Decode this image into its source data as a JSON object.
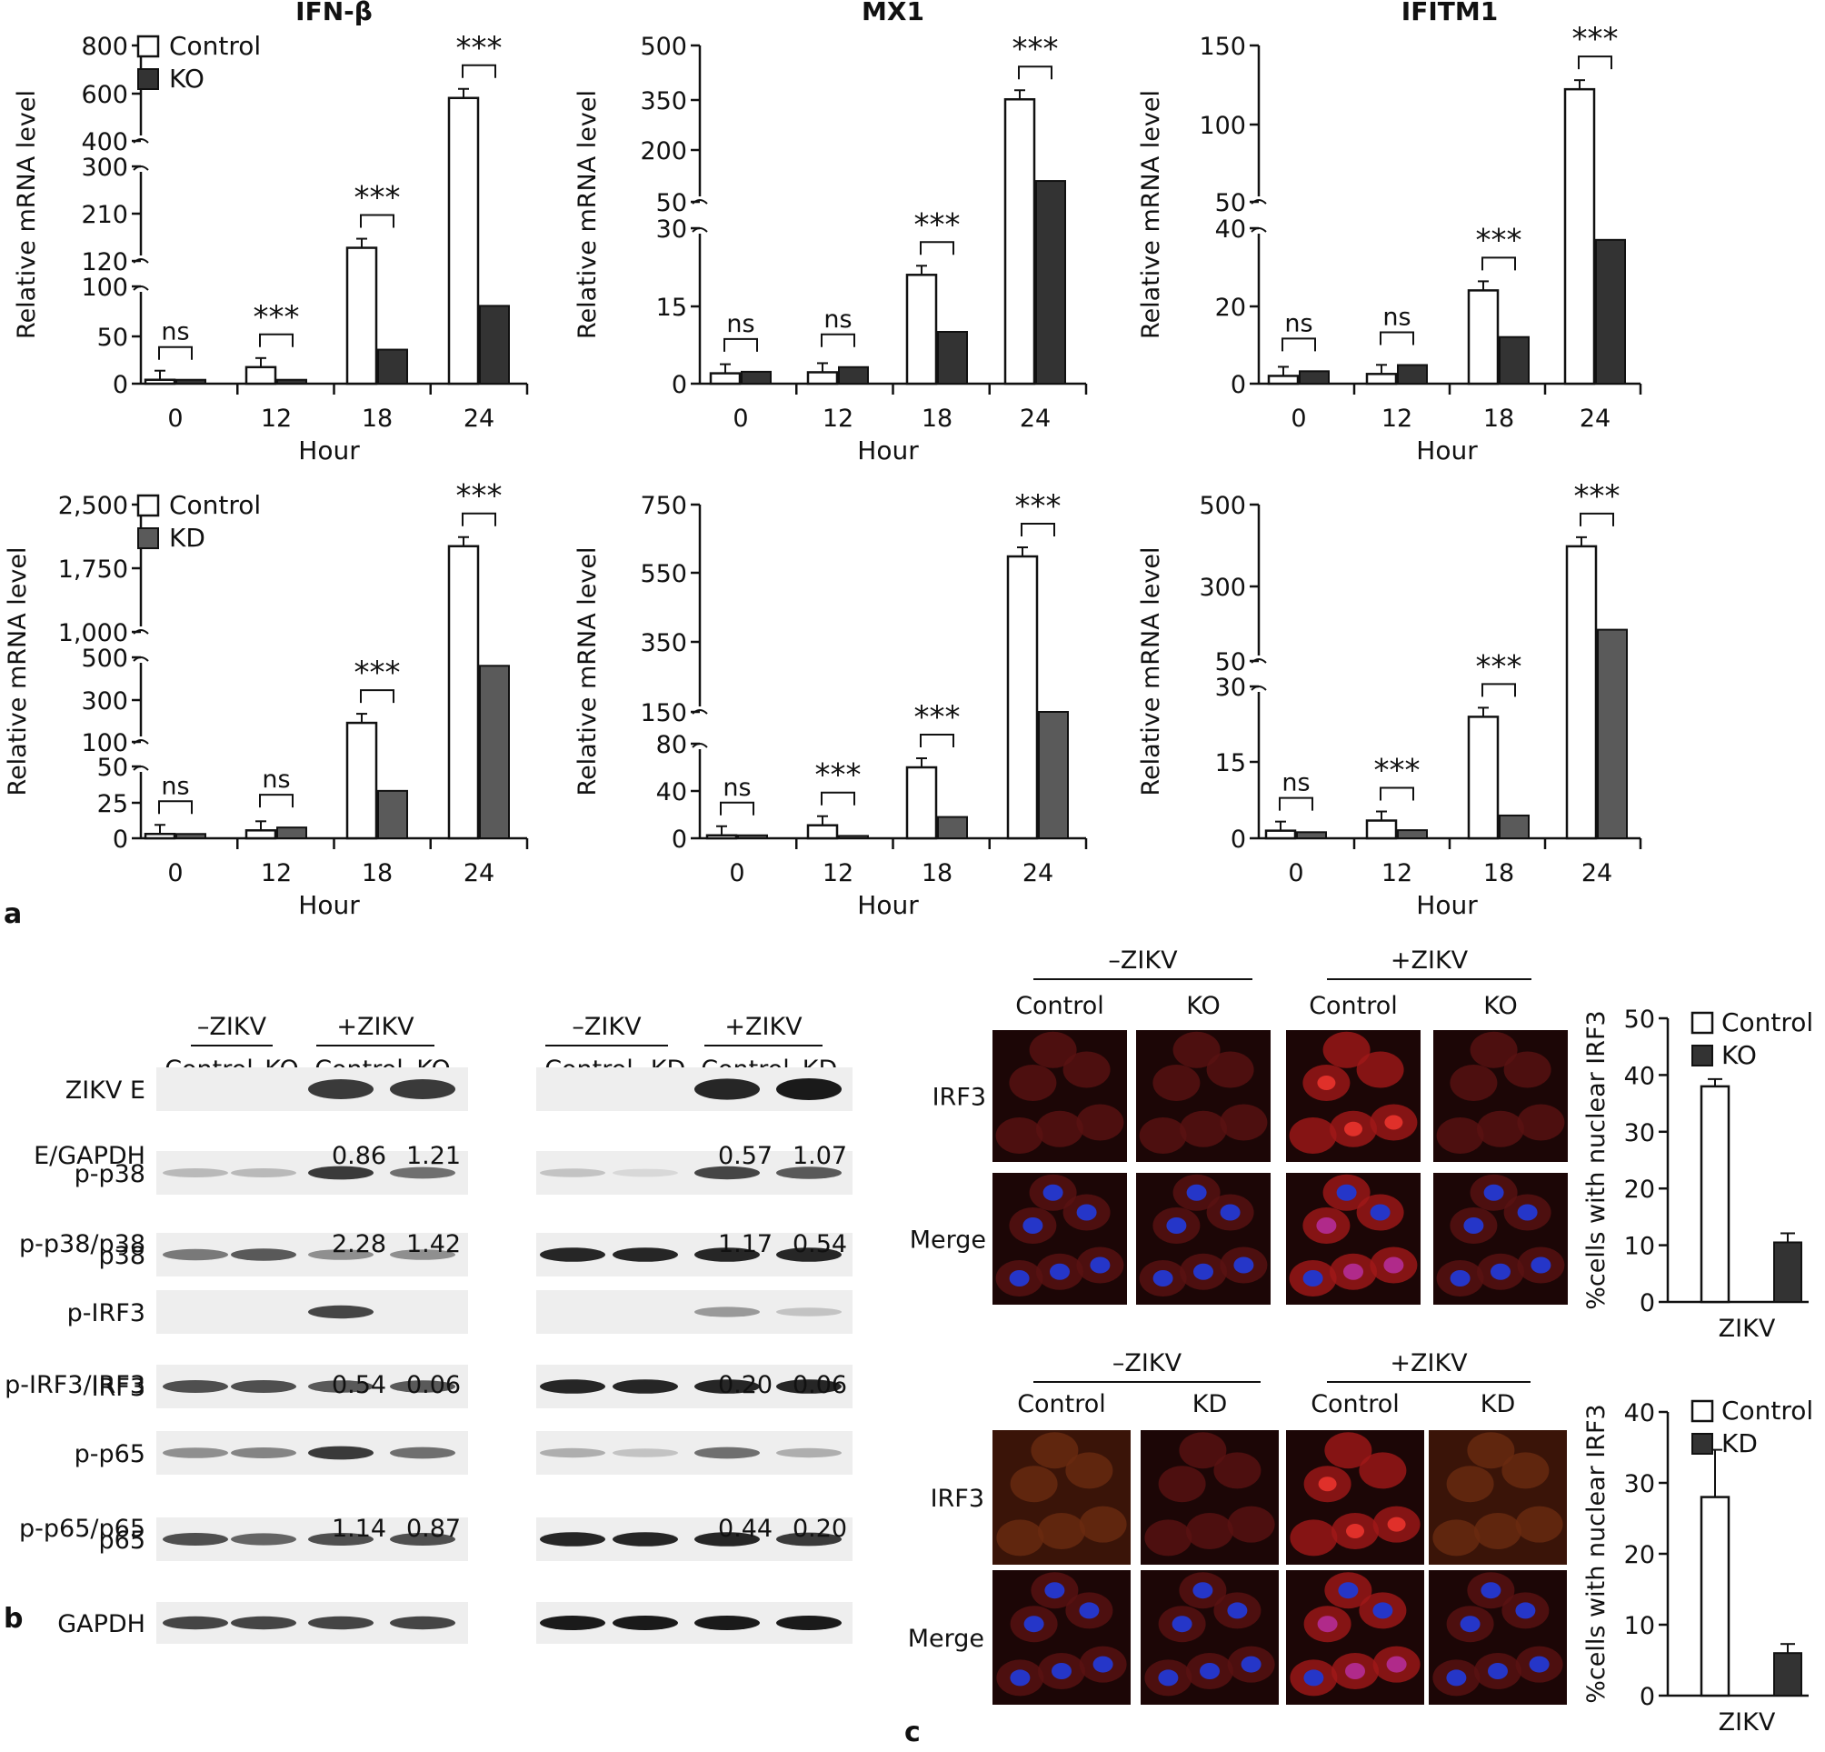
{
  "panel_labels": {
    "a": "a",
    "b": "b",
    "c": "c"
  },
  "colors": {
    "control": "#ffffff",
    "ko": "#333333",
    "kd": "#5a5a5a"
  },
  "chart_data": [
    {
      "type": "bar",
      "title": "IFN-β",
      "xlabel": "Hour",
      "ylabel": "Relative mRNA level",
      "categories": [
        "0",
        "12",
        "18",
        "24"
      ],
      "legend": [
        "Control",
        "KO"
      ],
      "broken_axis": true,
      "ticks": [
        "800",
        "600",
        "400",
        "300",
        "210",
        "120",
        "100",
        "50",
        "0"
      ],
      "series": [
        {
          "name": "Control",
          "values": [
            4,
            17,
            145,
            580
          ]
        },
        {
          "name": "KO",
          "values": [
            4,
            4,
            35,
            80
          ]
        }
      ],
      "significance": [
        "ns",
        "***",
        "***",
        "***"
      ]
    },
    {
      "type": "bar",
      "title": "MX1",
      "xlabel": "Hour",
      "ylabel": "Relative mRNA level",
      "categories": [
        "0",
        "12",
        "18",
        "24"
      ],
      "broken_axis": true,
      "ticks": [
        "500",
        "350",
        "200",
        "50",
        "30",
        "15",
        "0"
      ],
      "series": [
        {
          "name": "Control",
          "values": [
            2,
            2.2,
            21,
            345
          ]
        },
        {
          "name": "KO",
          "values": [
            2.3,
            3.2,
            10,
            110
          ]
        }
      ],
      "significance": [
        "ns",
        "ns",
        "***",
        "***"
      ]
    },
    {
      "type": "bar",
      "title": "IFITM1",
      "xlabel": "Hour",
      "ylabel": "Relative mRNA level",
      "categories": [
        "0",
        "12",
        "18",
        "24"
      ],
      "broken_axis": true,
      "ticks": [
        "150",
        "100",
        "50",
        "40",
        "20",
        "0"
      ],
      "series": [
        {
          "name": "Control",
          "values": [
            2,
            2.5,
            24,
            122
          ]
        },
        {
          "name": "KO",
          "values": [
            3.2,
            4.8,
            12,
            37
          ]
        }
      ],
      "significance": [
        "ns",
        "ns",
        "***",
        "***"
      ]
    },
    {
      "type": "bar",
      "title": "",
      "xlabel": "Hour",
      "ylabel": "Relative mRNA level",
      "categories": [
        "0",
        "12",
        "18",
        "24"
      ],
      "legend": [
        "Control",
        "KD"
      ],
      "broken_axis": true,
      "ticks": [
        "2,500",
        "1,750",
        "1,000",
        "500",
        "300",
        "100",
        "50",
        "25",
        "0"
      ],
      "series": [
        {
          "name": "Control",
          "values": [
            3,
            5.5,
            190,
            2010
          ]
        },
        {
          "name": "KD",
          "values": [
            3,
            7.5,
            33,
            460
          ]
        }
      ],
      "significance": [
        "ns",
        "ns",
        "***",
        "***"
      ]
    },
    {
      "type": "bar",
      "title": "",
      "xlabel": "Hour",
      "ylabel": "Relative mRNA level",
      "categories": [
        "0",
        "12",
        "18",
        "24"
      ],
      "broken_axis": true,
      "ticks": [
        "750",
        "550",
        "350",
        "150",
        "80",
        "40",
        "0"
      ],
      "series": [
        {
          "name": "Control",
          "values": [
            2.5,
            11,
            60,
            600
          ]
        },
        {
          "name": "KD",
          "values": [
            2.5,
            2,
            18,
            150
          ]
        }
      ],
      "significance": [
        "ns",
        "***",
        "***",
        "***"
      ]
    },
    {
      "type": "bar",
      "title": "",
      "xlabel": "Hour",
      "ylabel": "Relative mRNA level",
      "categories": [
        "0",
        "12",
        "18",
        "24"
      ],
      "broken_axis": true,
      "ticks": [
        "500",
        "300",
        "50",
        "30",
        "15",
        "0"
      ],
      "series": [
        {
          "name": "Control",
          "values": [
            1.5,
            3.5,
            24,
            380
          ]
        },
        {
          "name": "KD",
          "values": [
            1.2,
            1.6,
            4.5,
            140
          ]
        }
      ],
      "significance": [
        "ns",
        "***",
        "***",
        "***"
      ]
    },
    {
      "type": "bar",
      "title": "",
      "xlabel": "ZIKV",
      "ylabel": "%cells with nuclear IRF3",
      "categories": [
        "ZIKV"
      ],
      "ylim": [
        0,
        50
      ],
      "ticks": [
        "50",
        "40",
        "30",
        "20",
        "10",
        "0"
      ],
      "legend": [
        "Control",
        "KO"
      ],
      "series": [
        {
          "name": "Control",
          "values": [
            38
          ]
        },
        {
          "name": "KO",
          "values": [
            10.5
          ]
        }
      ]
    },
    {
      "type": "bar",
      "title": "",
      "xlabel": "ZIKV",
      "ylabel": "%cells with nuclear IRF3",
      "categories": [
        "ZIKV"
      ],
      "ylim": [
        0,
        40
      ],
      "ticks": [
        "40",
        "30",
        "20",
        "10",
        "0"
      ],
      "legend": [
        "Control",
        "KD"
      ],
      "series": [
        {
          "name": "Control",
          "values": [
            28
          ]
        },
        {
          "name": "KD",
          "values": [
            6
          ]
        }
      ]
    }
  ],
  "blots": {
    "left": {
      "groups": [
        "–ZIKV",
        "+ZIKV"
      ],
      "lanes": [
        "Control",
        "KO",
        "Control",
        "KO"
      ],
      "rows": [
        {
          "label": "ZIKV E",
          "intensity": [
            0,
            0,
            0.85,
            0.85
          ]
        },
        {
          "label": "p-p38",
          "intensity": [
            0.25,
            0.25,
            0.85,
            0.6
          ]
        },
        {
          "label": "p38",
          "intensity": [
            0.55,
            0.7,
            0.45,
            0.45
          ]
        },
        {
          "label": "p-IRF3",
          "intensity": [
            0,
            0,
            0.8,
            0
          ]
        },
        {
          "label": "IRF3",
          "intensity": [
            0.75,
            0.75,
            0.7,
            0.7
          ]
        },
        {
          "label": "p-p65",
          "intensity": [
            0.45,
            0.5,
            0.85,
            0.6
          ]
        },
        {
          "label": "p65",
          "intensity": [
            0.75,
            0.65,
            0.75,
            0.75
          ]
        },
        {
          "label": "GAPDH",
          "intensity": [
            0.8,
            0.8,
            0.8,
            0.8
          ]
        }
      ],
      "ratios": [
        {
          "label": "E/GAPDH",
          "values": [
            "",
            "",
            "0.86",
            "1.21"
          ]
        },
        {
          "label": "p-p38/p38",
          "values": [
            "",
            "",
            "2.28",
            "1.42"
          ]
        },
        {
          "label": "p-IRF3/IRF3",
          "values": [
            "",
            "",
            "0.54",
            "0.06"
          ]
        },
        {
          "label": "p-p65/p65",
          "values": [
            "",
            "",
            "1.14",
            "0.87"
          ]
        }
      ]
    },
    "right": {
      "groups": [
        "–ZIKV",
        "+ZIKV"
      ],
      "lanes": [
        "Control",
        "KD",
        "Control",
        "KD"
      ],
      "rows": [
        {
          "intensity": [
            0,
            0,
            0.95,
            1.0
          ]
        },
        {
          "intensity": [
            0.2,
            0.1,
            0.8,
            0.7
          ]
        },
        {
          "intensity": [
            0.95,
            0.95,
            0.95,
            0.95
          ]
        },
        {
          "intensity": [
            0,
            0,
            0.4,
            0.2
          ]
        },
        {
          "intensity": [
            0.95,
            0.95,
            0.95,
            0.95
          ]
        },
        {
          "intensity": [
            0.3,
            0.2,
            0.6,
            0.3
          ]
        },
        {
          "intensity": [
            0.95,
            0.95,
            0.95,
            0.85
          ]
        },
        {
          "intensity": [
            1.0,
            1.0,
            1.0,
            1.0
          ]
        }
      ],
      "ratios": [
        {
          "values": [
            "",
            "",
            "0.57",
            "1.07"
          ]
        },
        {
          "values": [
            "",
            "",
            "1.17",
            "0.54"
          ]
        },
        {
          "values": [
            "",
            "",
            "0.20",
            "0.06"
          ]
        },
        {
          "values": [
            "",
            "",
            "0.44",
            "0.20"
          ]
        }
      ]
    }
  },
  "microscopy": {
    "top": {
      "groups": [
        "–ZIKV",
        "+ZIKV"
      ],
      "columns": [
        "Control",
        "KO",
        "Control",
        "KO"
      ],
      "rows": [
        "IRF3",
        "Merge"
      ]
    },
    "bottom": {
      "groups": [
        "–ZIKV",
        "+ZIKV"
      ],
      "columns": [
        "Control",
        "KD",
        "Control",
        "KD"
      ],
      "rows": [
        "IRF3",
        "Merge"
      ]
    }
  }
}
